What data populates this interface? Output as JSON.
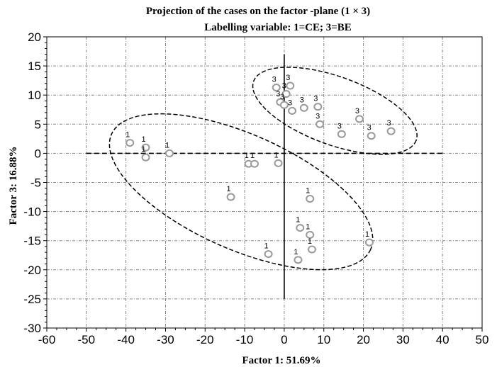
{
  "chart_data": {
    "type": "scatter",
    "title": "Projection of the cases on the factor -plane (1 × 3)",
    "subtitle": "Labelling variable: 1=CE; 3=BE",
    "xlabel": "Factor 1: 51.69%",
    "ylabel": "Factor 3: 16.88%",
    "xlim": [
      -60,
      50
    ],
    "ylim": [
      -30,
      20
    ],
    "xticks": [
      -60,
      -50,
      -40,
      -30,
      -20,
      -10,
      0,
      10,
      20,
      30,
      40,
      50
    ],
    "yticks": [
      20,
      15,
      10,
      5,
      0,
      -5,
      -10,
      -15,
      -20,
      -25,
      -30
    ],
    "grid": true,
    "colors": {
      "points": "#9a9a9a",
      "lines": "#000000"
    },
    "points": [
      {
        "x": -39.0,
        "y": 1.8,
        "label": "1"
      },
      {
        "x": -35.0,
        "y": 1.0,
        "label": "1"
      },
      {
        "x": -35.0,
        "y": -0.7,
        "label": "1"
      },
      {
        "x": -29.0,
        "y": 0.0,
        "label": "1"
      },
      {
        "x": -9.0,
        "y": -1.8,
        "label": "1"
      },
      {
        "x": -7.5,
        "y": -1.8,
        "label": "1"
      },
      {
        "x": -1.5,
        "y": -1.7,
        "label": "1"
      },
      {
        "x": -13.5,
        "y": -7.5,
        "label": "1"
      },
      {
        "x": -4.0,
        "y": -17.3,
        "label": "1"
      },
      {
        "x": 3.5,
        "y": -18.3,
        "label": "1"
      },
      {
        "x": 4.0,
        "y": -12.8,
        "label": "1"
      },
      {
        "x": 6.5,
        "y": -14.0,
        "label": "1"
      },
      {
        "x": 7.0,
        "y": -16.5,
        "label": "1"
      },
      {
        "x": 6.5,
        "y": -7.8,
        "label": "1"
      },
      {
        "x": 21.5,
        "y": -15.3,
        "label": "1"
      },
      {
        "x": -2.0,
        "y": 11.3,
        "label": "3"
      },
      {
        "x": 1.5,
        "y": 11.6,
        "label": "3"
      },
      {
        "x": 0.5,
        "y": 10.2,
        "label": "3"
      },
      {
        "x": -1.0,
        "y": 8.8,
        "label": "3"
      },
      {
        "x": 0.0,
        "y": 8.3,
        "label": "3"
      },
      {
        "x": 2.0,
        "y": 7.3,
        "label": "3"
      },
      {
        "x": 5.0,
        "y": 7.8,
        "label": "3"
      },
      {
        "x": 8.5,
        "y": 8.0,
        "label": "3"
      },
      {
        "x": 9.0,
        "y": 5.0,
        "label": "3"
      },
      {
        "x": 14.5,
        "y": 3.3,
        "label": "3"
      },
      {
        "x": 19.0,
        "y": 5.9,
        "label": "3"
      },
      {
        "x": 22.0,
        "y": 3.0,
        "label": "3"
      },
      {
        "x": 27.0,
        "y": 3.8,
        "label": "3"
      }
    ]
  }
}
